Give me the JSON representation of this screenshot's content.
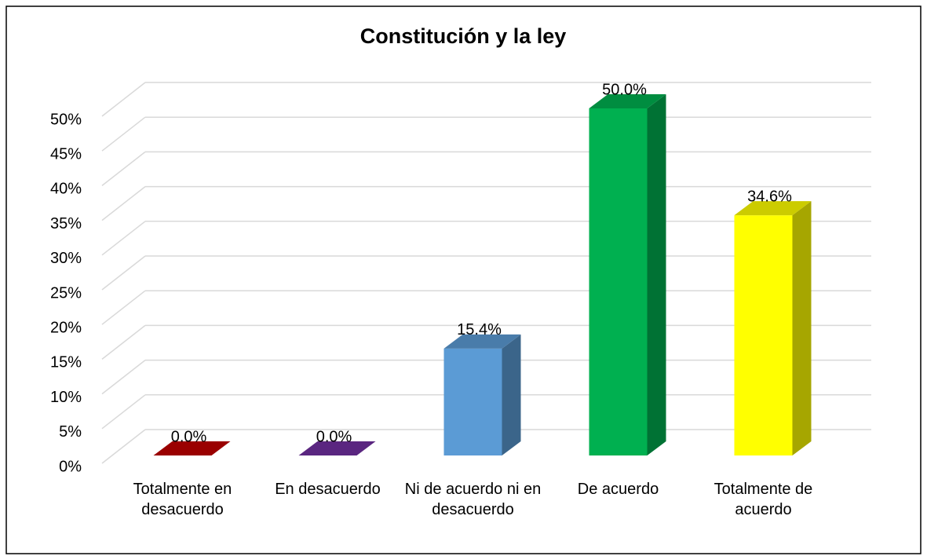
{
  "chart_data": {
    "type": "bar3d",
    "title": "Constitución y la ley",
    "categories": [
      "Totalmente en desacuerdo",
      "En desacuerdo",
      "Ni de acuerdo ni en desacuerdo",
      "De acuerdo",
      "Totalmente de acuerdo"
    ],
    "values": [
      0,
      0,
      15.4,
      50.0,
      34.6
    ],
    "value_labels": [
      "0.0%",
      "0.0%",
      "15.4%",
      "50.0%",
      "34.6%"
    ],
    "colors": [
      "#c00000",
      "#7030a0",
      "#5b9bd5",
      "#00b050",
      "#ffff00"
    ],
    "ylim": [
      0,
      50
    ],
    "yticks": [
      {
        "value": 0,
        "label": "0%"
      },
      {
        "value": 5,
        "label": "5%"
      },
      {
        "value": 10,
        "label": "10%"
      },
      {
        "value": 15,
        "label": "15%"
      },
      {
        "value": 20,
        "label": "20%"
      },
      {
        "value": 25,
        "label": "25%"
      },
      {
        "value": 30,
        "label": "30%"
      },
      {
        "value": 35,
        "label": "35%"
      },
      {
        "value": 40,
        "label": "40%"
      },
      {
        "value": 45,
        "label": "45%"
      },
      {
        "value": 50,
        "label": "50%"
      }
    ],
    "grid": true
  }
}
